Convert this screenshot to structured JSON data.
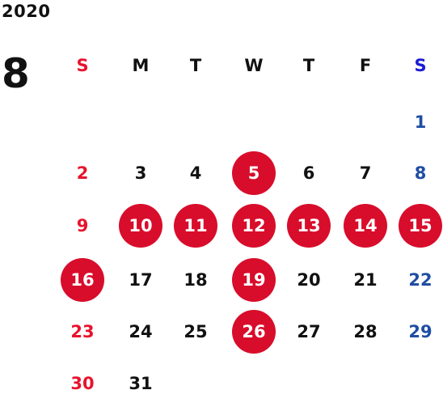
{
  "calendar": {
    "year": "2020",
    "month": "8",
    "weekdays": [
      "S",
      "M",
      "T",
      "W",
      "T",
      "F",
      "S"
    ],
    "weeks": [
      [
        "",
        "",
        "",
        "",
        "",
        "",
        "1"
      ],
      [
        "2",
        "3",
        "4",
        "5",
        "6",
        "7",
        "8"
      ],
      [
        "9",
        "10",
        "11",
        "12",
        "13",
        "14",
        "15"
      ],
      [
        "16",
        "17",
        "18",
        "19",
        "20",
        "21",
        "22"
      ],
      [
        "23",
        "24",
        "25",
        "26",
        "27",
        "28",
        "29"
      ],
      [
        "30",
        "31",
        "",
        "",
        "",
        "",
        ""
      ]
    ],
    "highlighted_days": [
      "5",
      "10",
      "11",
      "12",
      "13",
      "14",
      "15",
      "16",
      "19",
      "26"
    ]
  },
  "colors": {
    "sunday": "#e8132d",
    "saturday": "#1f4ea3",
    "saturday_header": "#1b1bd6",
    "weekday": "#111111",
    "highlight_fill": "#d80d2b",
    "highlight_text": "#ffffff"
  }
}
